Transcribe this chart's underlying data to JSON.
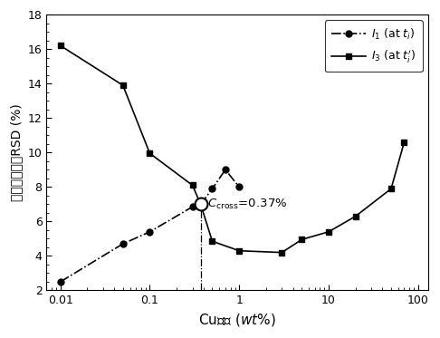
{
  "I1_x": [
    0.01,
    0.05,
    0.1,
    0.3,
    0.37,
    0.5,
    0.7,
    1.0
  ],
  "I1_y": [
    2.5,
    4.7,
    5.4,
    6.85,
    7.0,
    7.9,
    9.0,
    8.0
  ],
  "I3_x": [
    0.01,
    0.05,
    0.1,
    0.3,
    0.37,
    0.5,
    1.0,
    3.0,
    5.0,
    10.0,
    20.0,
    50.0,
    70.0
  ],
  "I3_y": [
    16.2,
    13.9,
    9.95,
    8.1,
    7.0,
    4.85,
    4.3,
    4.2,
    4.95,
    5.4,
    6.3,
    7.9,
    10.6
  ],
  "cross_x": 0.37,
  "cross_y": 7.0,
  "ylim": [
    2,
    18
  ],
  "yticks": [
    2,
    4,
    6,
    8,
    10,
    12,
    14,
    16,
    18
  ],
  "xlim_min": 0.007,
  "xlim_max": 130,
  "background": "#ffffff"
}
